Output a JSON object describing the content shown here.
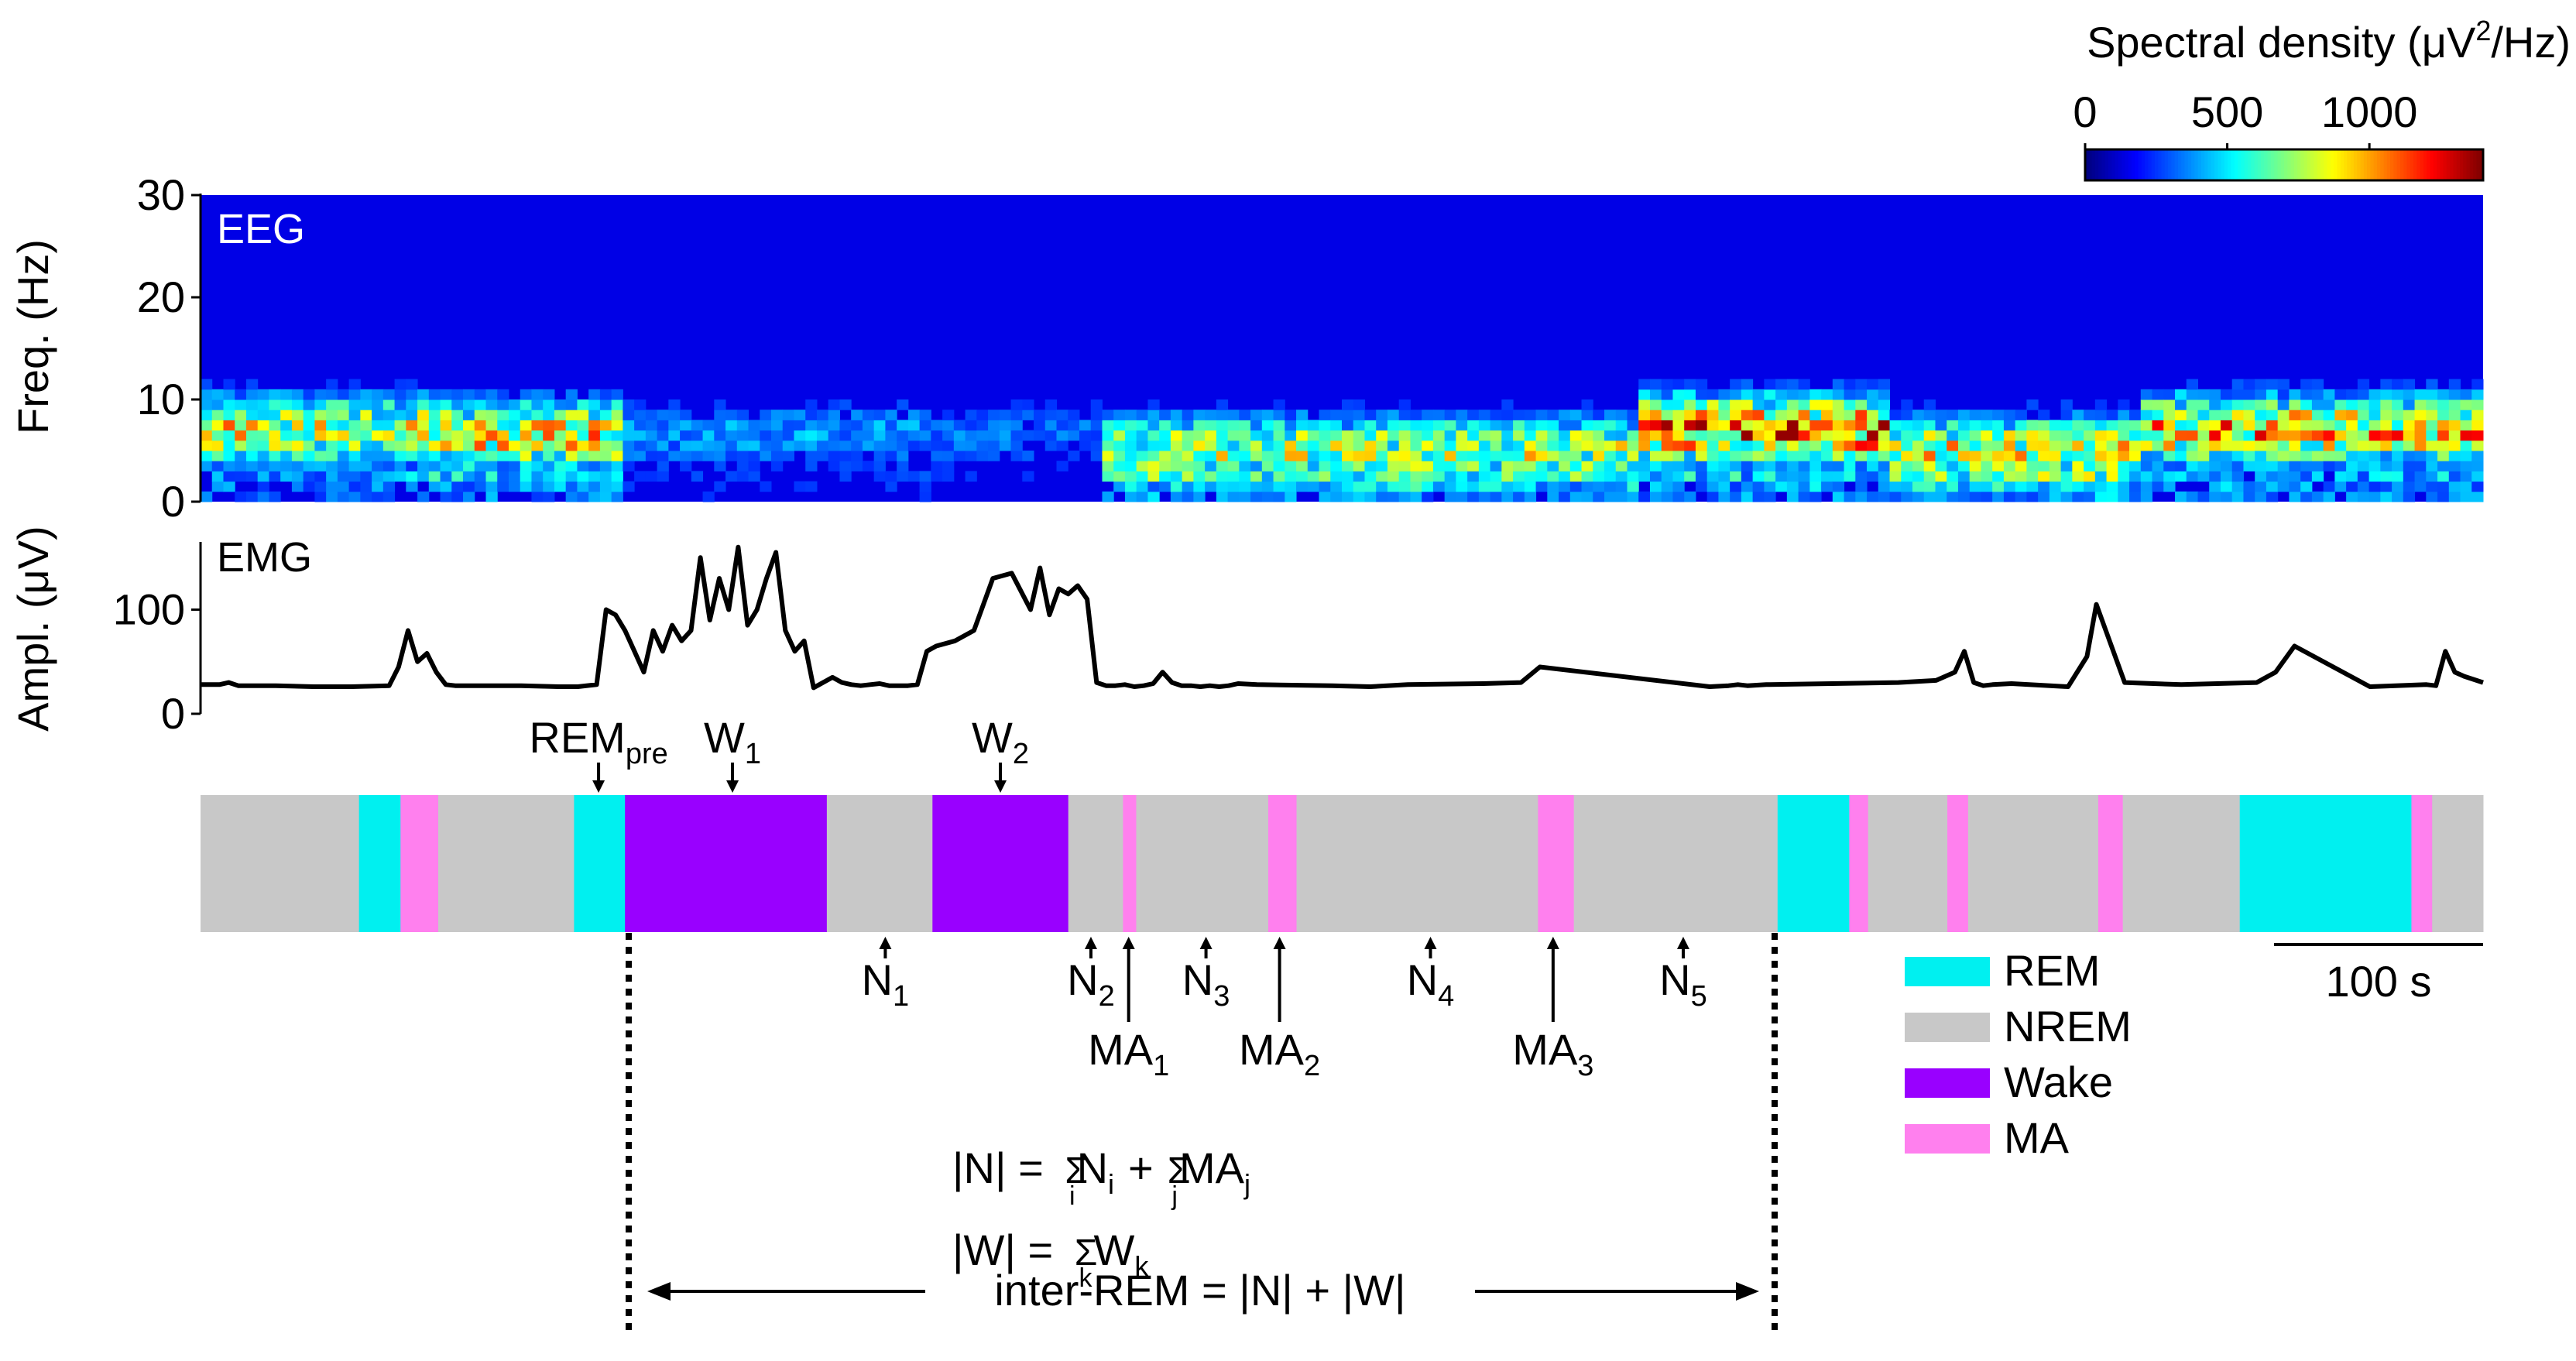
{
  "colorbar": {
    "label": "Spectral density (μV²/Hz)",
    "label_main": "Spectral density (μV",
    "label_sup": "2",
    "label_tail": "/Hz)",
    "ticks": [
      {
        "value": 0,
        "label": "0"
      },
      {
        "value": 500,
        "label": "500"
      },
      {
        "value": 1000,
        "label": "1000"
      }
    ],
    "range": [
      0,
      1400
    ],
    "colormap": "jet"
  },
  "eeg": {
    "panel_label": "EEG",
    "ylabel": "Freq. (Hz)",
    "ylim": [
      0,
      30
    ],
    "yticks": [
      {
        "value": 0,
        "label": "0"
      },
      {
        "value": 10,
        "label": "10"
      },
      {
        "value": 20,
        "label": "20"
      },
      {
        "value": 30,
        "label": "30"
      }
    ]
  },
  "emg": {
    "panel_label": "EMG",
    "ylabel": "Ampl. (μV)",
    "ylim": [
      0,
      165
    ],
    "yticks": [
      {
        "value": 0,
        "label": "0"
      },
      {
        "value": 100,
        "label": "100"
      }
    ]
  },
  "legend": {
    "items": [
      {
        "label": "REM",
        "color": "#00f0f0"
      },
      {
        "label": "NREM",
        "color": "#c8c8c8"
      },
      {
        "label": "Wake",
        "color": "#9900ff"
      },
      {
        "label": "MA",
        "color": "#ff80ee"
      }
    ]
  },
  "scale_bar": {
    "label": "100 s",
    "value_s": 100
  },
  "equations": {
    "n": {
      "lhs": "|N| =",
      "p1": "N",
      "p1_sub": "i",
      "sum1_sub": "i",
      "plus": "+",
      "p2": "MA",
      "p2_sub": "j",
      "sum2_sub": "j"
    },
    "w": {
      "lhs": "|W| =",
      "p1": "W",
      "p1_sub": "k",
      "sum1_sub": "k"
    },
    "inter": "inter-REM = |N| + |W|"
  },
  "chart_data": [
    {
      "type": "heatmap",
      "title": "EEG",
      "ylabel": "Freq. (Hz)",
      "ylim": [
        0,
        30
      ],
      "x_range_s": [
        0,
        1210
      ],
      "value_range": [
        0,
        1400
      ],
      "colormap": "jet",
      "band_peaks": [
        {
          "x_range": [
            0,
            105
          ],
          "peak_hz": 7,
          "intensity": 0.55
        },
        {
          "x_range": [
            120,
            225
          ],
          "peak_hz": 6.5,
          "intensity": 0.6
        },
        {
          "x_range": [
            225,
            390
          ],
          "peak_hz": 6.5,
          "intensity": 0.2
        },
        {
          "x_range": [
            390,
            480
          ],
          "peak_hz": 6.5,
          "intensity": 0.15
        },
        {
          "x_range": [
            480,
            760
          ],
          "peak_hz": 5,
          "intensity": 0.5
        },
        {
          "x_range": [
            760,
            895
          ],
          "peak_hz": 7,
          "intensity": 0.75
        },
        {
          "x_range": [
            895,
            1030
          ],
          "peak_hz": 5,
          "intensity": 0.55
        },
        {
          "x_range": [
            1030,
            1210
          ],
          "peak_hz": 7,
          "intensity": 0.65
        }
      ]
    },
    {
      "type": "line",
      "title": "EMG",
      "ylabel": "Ampl. (μV)",
      "ylim": [
        0,
        165
      ],
      "series": [
        {
          "x": [
            0,
            10,
            15,
            20,
            40,
            60,
            80,
            100,
            105,
            110,
            115,
            120,
            125,
            130,
            135,
            140,
            150,
            170,
            190,
            200,
            210,
            215,
            220,
            225,
            230,
            235,
            240,
            245,
            250,
            255,
            260,
            265,
            270,
            275,
            280,
            285,
            290,
            295,
            300,
            305,
            310,
            315,
            320,
            325,
            330,
            335,
            340,
            345,
            350,
            355,
            360,
            365,
            370,
            375,
            380,
            385,
            390,
            400,
            410,
            420,
            430,
            440,
            445,
            450,
            455,
            460,
            465,
            470,
            475,
            480,
            485,
            490,
            495,
            500,
            505,
            510,
            515,
            520,
            525,
            530,
            535,
            540,
            545,
            550,
            560,
            600,
            620,
            640,
            680,
            700,
            710,
            800,
            810,
            815,
            820,
            830,
            900,
            920,
            930,
            935,
            940,
            945,
            950,
            960,
            990,
            1000,
            1005,
            1010,
            1020,
            1050,
            1090,
            1100,
            1110,
            1150,
            1180,
            1185,
            1190,
            1195,
            1200,
            1210
          ],
          "y": [
            28,
            28,
            30,
            27,
            27,
            26,
            26,
            27,
            45,
            80,
            50,
            58,
            40,
            28,
            27,
            27,
            27,
            27,
            26,
            26,
            28,
            100,
            95,
            80,
            60,
            40,
            80,
            60,
            85,
            70,
            80,
            150,
            90,
            130,
            100,
            160,
            85,
            100,
            130,
            155,
            80,
            60,
            70,
            25,
            30,
            35,
            30,
            28,
            27,
            28,
            29,
            27,
            27,
            27,
            28,
            60,
            65,
            70,
            80,
            130,
            135,
            100,
            140,
            95,
            120,
            115,
            123,
            110,
            30,
            27,
            27,
            28,
            26,
            27,
            29,
            40,
            30,
            27,
            27,
            26,
            27,
            26,
            27,
            29,
            28,
            27,
            26,
            28,
            29,
            30,
            45,
            26,
            27,
            28,
            27,
            28,
            30,
            32,
            40,
            60,
            30,
            27,
            28,
            29,
            26,
            55,
            105,
            80,
            30,
            28,
            30,
            40,
            65,
            26,
            28,
            27,
            60,
            40,
            36,
            30
          ],
          "note_keypoints": "spikes at ~110, ~210-315, ~435-475, ~493, ~568, ~644, ~885, ~1005, ~1036, ~1085, ~1185 s"
        }
      ]
    },
    {
      "type": "bar",
      "title": "hypnogram",
      "x_range_s": [
        0,
        1210
      ],
      "segments": [
        {
          "state": "NREM",
          "start": 0,
          "end": 84
        },
        {
          "state": "REM",
          "start": 84,
          "end": 106
        },
        {
          "state": "MA",
          "start": 106,
          "end": 126
        },
        {
          "state": "NREM",
          "start": 126,
          "end": 198
        },
        {
          "state": "REM",
          "start": 198,
          "end": 225
        },
        {
          "state": "Wake",
          "start": 225,
          "end": 332
        },
        {
          "state": "NREM",
          "start": 332,
          "end": 388
        },
        {
          "state": "Wake",
          "start": 388,
          "end": 460
        },
        {
          "state": "NREM",
          "start": 460,
          "end": 489
        },
        {
          "state": "MA",
          "start": 489,
          "end": 496
        },
        {
          "state": "NREM",
          "start": 496,
          "end": 566
        },
        {
          "state": "MA",
          "start": 566,
          "end": 581
        },
        {
          "state": "NREM",
          "start": 581,
          "end": 709
        },
        {
          "state": "MA",
          "start": 709,
          "end": 728
        },
        {
          "state": "NREM",
          "start": 728,
          "end": 836
        },
        {
          "state": "REM",
          "start": 836,
          "end": 874
        },
        {
          "state": "MA",
          "start": 874,
          "end": 884
        },
        {
          "state": "NREM",
          "start": 884,
          "end": 926
        },
        {
          "state": "MA",
          "start": 926,
          "end": 937
        },
        {
          "state": "NREM",
          "start": 937,
          "end": 1006
        },
        {
          "state": "MA",
          "start": 1006,
          "end": 1019
        },
        {
          "state": "NREM",
          "start": 1019,
          "end": 1081
        },
        {
          "state": "REM",
          "start": 1081,
          "end": 1172
        },
        {
          "state": "MA",
          "start": 1172,
          "end": 1183
        },
        {
          "state": "NREM",
          "start": 1183,
          "end": 1210
        }
      ],
      "annotations": [
        {
          "label": "REM",
          "sub": "pre",
          "x": 211,
          "side": "top"
        },
        {
          "label": "W",
          "sub": "1",
          "x": 282,
          "side": "top"
        },
        {
          "label": "W",
          "sub": "2",
          "x": 424,
          "side": "top"
        },
        {
          "label": "N",
          "sub": "1",
          "x": 363,
          "side": "bottom"
        },
        {
          "label": "N",
          "sub": "2",
          "x": 472,
          "side": "bottom"
        },
        {
          "label": "N",
          "sub": "3",
          "x": 533,
          "side": "bottom"
        },
        {
          "label": "N",
          "sub": "4",
          "x": 652,
          "side": "bottom"
        },
        {
          "label": "N",
          "sub": "5",
          "x": 786,
          "side": "bottom"
        },
        {
          "label": "MA",
          "sub": "1",
          "x": 492,
          "side": "bottom_long"
        },
        {
          "label": "MA",
          "sub": "2",
          "x": 572,
          "side": "bottom_long"
        },
        {
          "label": "MA",
          "sub": "3",
          "x": 717,
          "side": "bottom_long"
        }
      ]
    }
  ]
}
